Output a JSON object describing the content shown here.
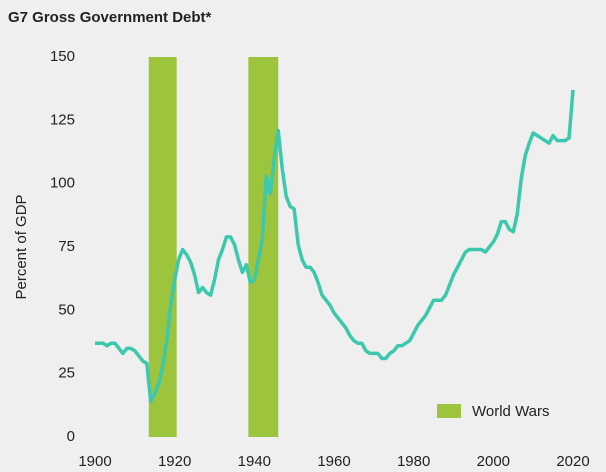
{
  "chart_data": {
    "type": "line",
    "title": "G7 Gross Government Debt*",
    "y_label": "Percent of GDP",
    "x": [
      1900,
      1901,
      1902,
      1903,
      1904,
      1905,
      1906,
      1907,
      1908,
      1909,
      1910,
      1911,
      1912,
      1913,
      1914,
      1915,
      1916,
      1917,
      1918,
      1919,
      1920,
      1921,
      1922,
      1923,
      1924,
      1925,
      1926,
      1927,
      1928,
      1929,
      1930,
      1931,
      1932,
      1933,
      1934,
      1935,
      1936,
      1937,
      1938,
      1939,
      1940,
      1941,
      1942,
      1943,
      1944,
      1945,
      1946,
      1947,
      1948,
      1949,
      1950,
      1951,
      1952,
      1953,
      1954,
      1955,
      1956,
      1957,
      1958,
      1959,
      1960,
      1961,
      1962,
      1963,
      1964,
      1965,
      1966,
      1967,
      1968,
      1969,
      1970,
      1971,
      1972,
      1973,
      1974,
      1975,
      1976,
      1977,
      1978,
      1979,
      1980,
      1981,
      1982,
      1983,
      1984,
      1985,
      1986,
      1987,
      1988,
      1989,
      1990,
      1991,
      1992,
      1993,
      1994,
      1995,
      1996,
      1997,
      1998,
      1999,
      2000,
      2001,
      2002,
      2003,
      2004,
      2005,
      2006,
      2007,
      2008,
      2009,
      2010,
      2011,
      2012,
      2013,
      2014,
      2015,
      2016,
      2017,
      2018,
      2019,
      2020
    ],
    "series": [
      {
        "color": "#3cc8ad",
        "values": [
          37,
          37,
          37,
          36,
          37,
          37,
          35,
          33,
          35,
          35,
          34,
          32,
          30,
          29,
          14,
          17,
          21,
          28,
          38,
          52,
          62,
          70,
          74,
          72,
          69,
          64,
          57,
          59,
          57,
          56,
          62,
          70,
          74,
          79,
          79,
          76,
          70,
          65,
          68,
          61,
          62,
          70,
          78,
          103,
          96,
          110,
          121,
          106,
          95,
          91,
          90,
          76,
          70,
          67,
          67,
          65,
          61,
          56,
          54,
          52,
          49,
          47,
          45,
          43,
          40,
          38,
          37,
          37,
          34,
          33,
          33,
          33,
          31,
          31,
          33,
          34,
          36,
          36,
          37,
          38,
          41,
          44,
          46,
          48,
          51,
          54,
          54,
          54,
          56,
          60,
          64,
          67,
          70,
          73,
          74,
          74,
          74,
          74,
          73,
          75,
          77,
          80,
          85,
          85,
          82,
          81,
          88,
          102,
          111,
          116,
          120,
          119,
          118,
          117,
          116,
          119,
          117,
          117,
          117,
          118,
          137
        ]
      }
    ],
    "shaded": {
      "name": "World Wars",
      "color": "#9cc43c",
      "spans": [
        [
          1913.5,
          1920.5
        ],
        [
          1938.5,
          1946
        ]
      ]
    },
    "xlim": [
      1900,
      2020
    ],
    "xticks": [
      1900,
      1920,
      1940,
      1960,
      1980,
      2000,
      2020
    ],
    "ylim": [
      0,
      150
    ],
    "yticks": [
      0,
      25,
      50,
      75,
      100,
      125,
      150
    ],
    "legend": "lower right"
  }
}
